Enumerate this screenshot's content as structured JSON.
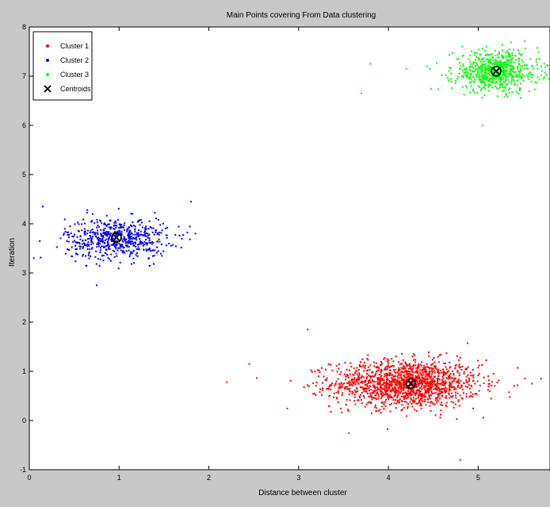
{
  "chart_data": {
    "type": "scatter",
    "title": "Main Points covering From Data clustering",
    "xlabel": "Distance between cluster",
    "ylabel": "Iteration",
    "xlim": [
      0,
      5.8
    ],
    "ylim": [
      -1,
      8
    ],
    "x_ticks": [
      "0",
      "1",
      "2",
      "3",
      "4",
      "5"
    ],
    "y_ticks": [
      "-1",
      "0",
      "1",
      "2",
      "3",
      "4",
      "5",
      "6",
      "7",
      "8"
    ],
    "x_tick_values": [
      0,
      1,
      2,
      3,
      4,
      5
    ],
    "y_tick_values": [
      -1,
      0,
      1,
      2,
      3,
      4,
      5,
      6,
      7,
      8
    ],
    "grid": false,
    "legend_position": "top-left",
    "series": [
      {
        "name": "Cluster 1",
        "color": "#ff0000",
        "marker": "dot",
        "count": 1500,
        "center": [
          4.2,
          0.75
        ],
        "spread": [
          0.55,
          0.32
        ],
        "outliers": [
          [
            2.2,
            0.78
          ],
          [
            2.45,
            1.15
          ],
          [
            5.7,
            0.85
          ],
          [
            5.6,
            0.75
          ],
          [
            3.1,
            1.85
          ],
          [
            4.8,
            -0.8
          ]
        ]
      },
      {
        "name": "Cluster 2",
        "color": "#0000ff",
        "marker": "dot",
        "count": 600,
        "center": [
          0.97,
          3.7
        ],
        "spread": [
          0.38,
          0.28
        ],
        "outliers": [
          [
            0.05,
            3.3
          ],
          [
            0.15,
            4.35
          ],
          [
            1.8,
            4.45
          ],
          [
            1.85,
            3.8
          ],
          [
            0.75,
            2.75
          ]
        ]
      },
      {
        "name": "Cluster 3",
        "color": "#00ff00",
        "marker": "dot",
        "count": 650,
        "center": [
          5.2,
          7.1
        ],
        "spread": [
          0.32,
          0.28
        ],
        "outliers": [
          [
            3.8,
            7.25
          ],
          [
            3.7,
            6.65
          ],
          [
            4.2,
            7.15
          ],
          [
            5.05,
            6.0
          ]
        ]
      },
      {
        "name": "Centroids",
        "color": "#000000",
        "marker": "x",
        "points": [
          [
            4.25,
            0.75
          ],
          [
            0.97,
            3.72
          ],
          [
            5.2,
            7.1
          ]
        ]
      }
    ]
  }
}
